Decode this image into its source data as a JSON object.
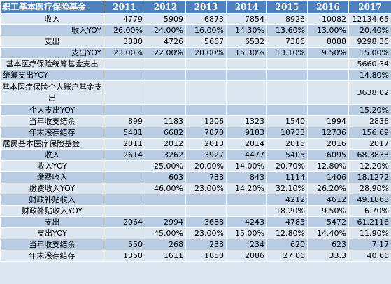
{
  "table": {
    "headers": [
      "职工基本医疗保险基金",
      "2011",
      "2012",
      "2013",
      "2014",
      "2015",
      "2016",
      "2017"
    ],
    "rows": [
      [
        "收入",
        "4779",
        "5909",
        "6873",
        "7854",
        "8926",
        "10082",
        "12134.65"
      ],
      [
        "收入YOY",
        "26.00%",
        "24.00%",
        "16.00%",
        "14.30%",
        "13.60%",
        "13.00%",
        "20.40%"
      ],
      [
        "支出",
        "3880",
        "4726",
        "5667",
        "6532",
        "7386",
        "8088",
        "9298.36"
      ],
      [
        "支出YOY",
        "23.00%",
        "22.00%",
        "20.00%",
        "15.30%",
        "13.10%",
        "9.50%",
        "15.00%"
      ],
      [
        "基本医疗保险统筹基金支出",
        "",
        "",
        "",
        "",
        "",
        "",
        "5660.34"
      ],
      [
        "统筹支出YOY",
        "",
        "",
        "",
        "",
        "",
        "",
        "14.80%"
      ],
      [
        "基本医疗保险个人账户基金支出",
        "",
        "",
        "",
        "",
        "",
        "",
        "3638.02"
      ],
      [
        "个人支出YOY",
        "",
        "",
        "",
        "",
        "",
        "",
        "15.20%"
      ],
      [
        "当年收支结余",
        "899",
        "1183",
        "1206",
        "1323",
        "1540",
        "1994",
        "2836"
      ],
      [
        "年末滚存结存",
        "5481",
        "6682",
        "7870",
        "9183",
        "10733",
        "12736",
        "156.69"
      ],
      [
        "居民基本医疗保险基金",
        "2011",
        "2012",
        "2013",
        "2014",
        "2015",
        "2016",
        "2017"
      ],
      [
        "收入",
        "2614",
        "3262",
        "3927",
        "4477",
        "5405",
        "6095",
        "68.3833"
      ],
      [
        "收入YOY",
        "",
        "25.00%",
        "20.00%",
        "14.00%",
        "20.70%",
        "12.80%",
        "12.20%"
      ],
      [
        "缴费收入",
        "",
        "603",
        "738",
        "843",
        "1114",
        "1406",
        "18.1272"
      ],
      [
        "缴费收入YOY",
        "",
        "46.00%",
        "23.00%",
        "14.20%",
        "32.10%",
        "26.20%",
        "28.90%"
      ],
      [
        "财政补贴收入",
        "",
        "",
        "",
        "",
        "4212",
        "4612",
        "49.1868"
      ],
      [
        "财政补贴收入YOY",
        "",
        "",
        "",
        "",
        "18.20%",
        "9.50%",
        "6.70%"
      ],
      [
        "支出",
        "2064",
        "2994",
        "3688",
        "4243",
        "4785",
        "5472",
        "61.2116"
      ],
      [
        "支出YOY",
        "",
        "45.00%",
        "23.00%",
        "15.00%",
        "12.80%",
        "14.40%",
        "11.90%"
      ],
      [
        "当年收支结余",
        "550",
        "268",
        "238",
        "234",
        "620",
        "623",
        "7.17"
      ],
      [
        "年末滚存结存",
        "1350",
        "1611",
        "1850",
        "2086",
        "27.06",
        "33.3",
        "40.66"
      ]
    ],
    "label_align": [
      "center",
      "r",
      "center",
      "r",
      "center",
      "l",
      "wrap",
      "center",
      "center",
      "center",
      "l",
      "center",
      "center",
      "center",
      "center",
      "center",
      "center",
      "center",
      "center",
      "center",
      "center"
    ],
    "colors": {
      "header_bg": "#4f81bd",
      "row_light": "#dce6f1",
      "row_dark": "#b8cce4",
      "border": "#ffffff"
    }
  }
}
